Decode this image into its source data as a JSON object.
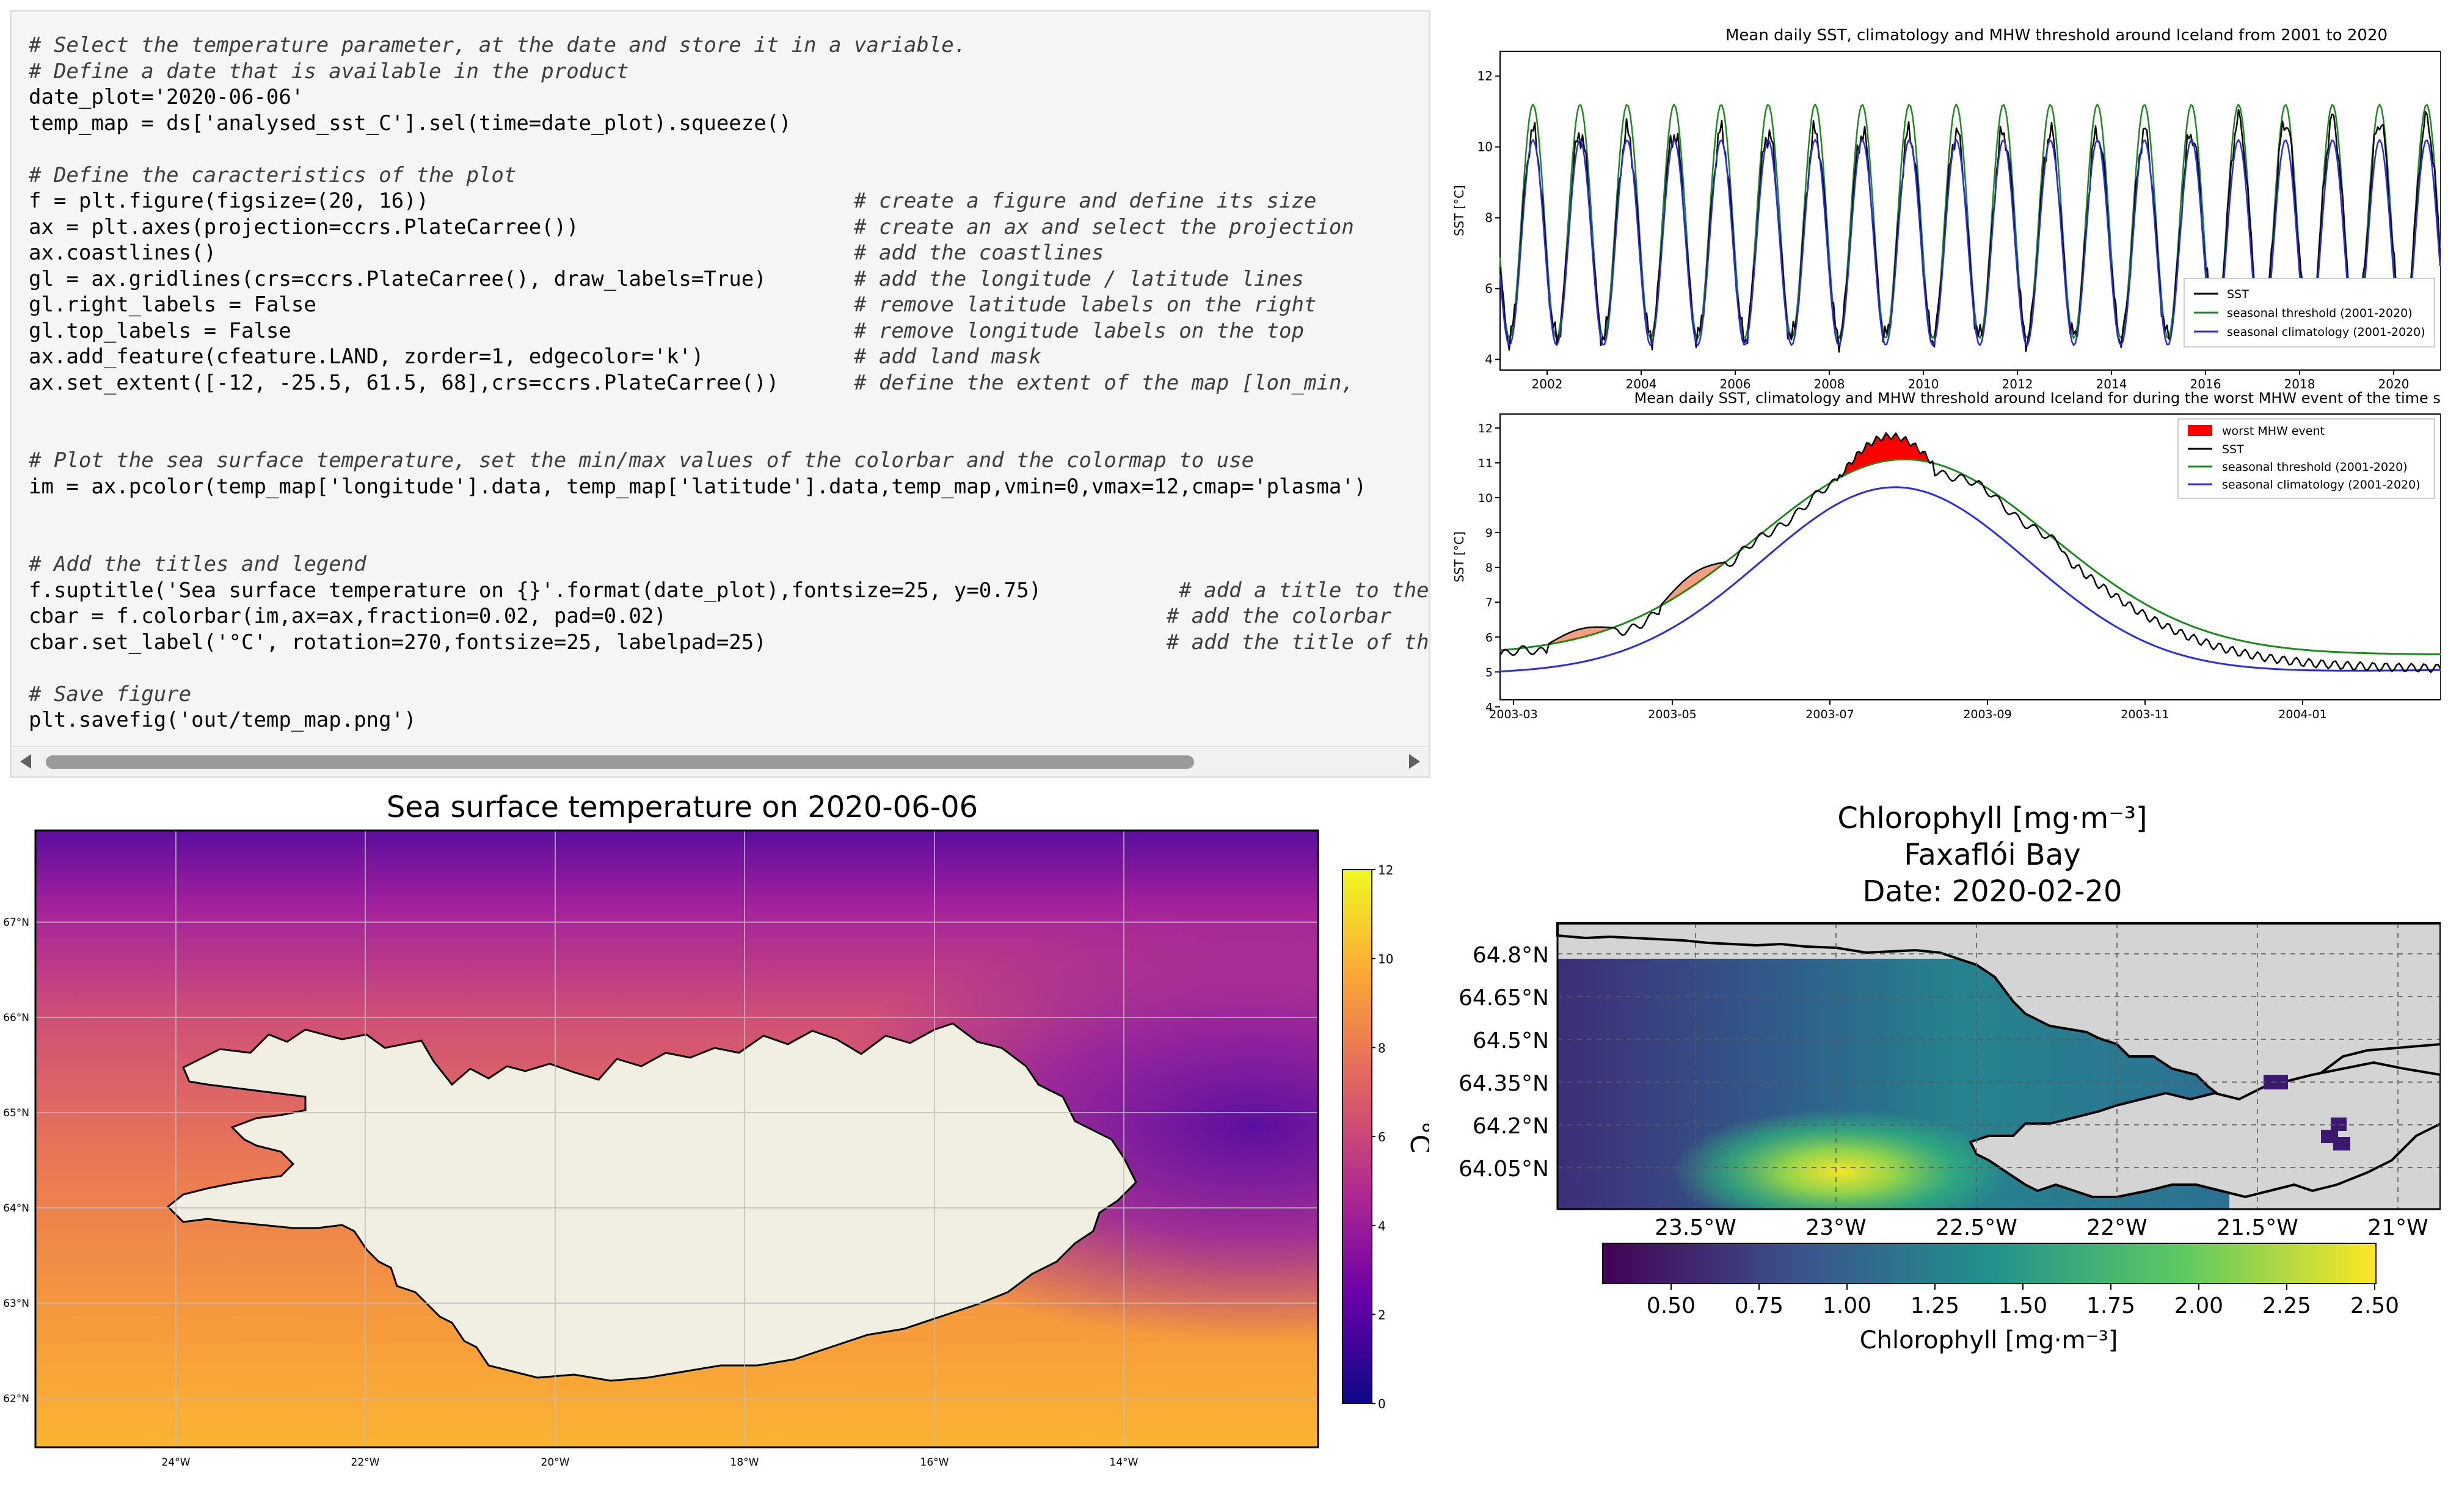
{
  "code_cell": {
    "lines": [
      {
        "code": "",
        "comment": "# Select the temperature parameter, at the date and store it in a variable."
      },
      {
        "code": "",
        "comment": "# Define a date that is available in the product"
      },
      {
        "code": "date_plot='2020-06-06'",
        "comment": ""
      },
      {
        "code": "temp_map = ds['analysed_sst_C'].sel(time=date_plot).squeeze()",
        "comment": ""
      },
      {
        "code": "",
        "comment": ""
      },
      {
        "code": "",
        "comment": "# Define the caracteristics of the plot"
      },
      {
        "code": "f = plt.figure(figsize=(20, 16))                                  ",
        "comment": "# create a figure and define its size"
      },
      {
        "code": "ax = plt.axes(projection=ccrs.PlateCarree())                      ",
        "comment": "# create an ax and select the projection"
      },
      {
        "code": "ax.coastlines()                                                   ",
        "comment": "# add the coastlines"
      },
      {
        "code": "gl = ax.gridlines(crs=ccrs.PlateCarree(), draw_labels=True)       ",
        "comment": "# add the longitude / latitude lines"
      },
      {
        "code": "gl.right_labels = False                                           ",
        "comment": "# remove latitude labels on the right"
      },
      {
        "code": "gl.top_labels = False                                             ",
        "comment": "# remove longitude labels on the top"
      },
      {
        "code": "ax.add_feature(cfeature.LAND, zorder=1, edgecolor='k')            ",
        "comment": "# add land mask"
      },
      {
        "code": "ax.set_extent([-12, -25.5, 61.5, 68],crs=ccrs.PlateCarree())      ",
        "comment": "# define the extent of the map [lon_min,"
      },
      {
        "code": "",
        "comment": ""
      },
      {
        "code": "",
        "comment": ""
      },
      {
        "code": "",
        "comment": "# Plot the sea surface temperature, set the min/max values of the colorbar and the colormap to use"
      },
      {
        "code": "im = ax.pcolor(temp_map['longitude'].data, temp_map['latitude'].data,temp_map,vmin=0,vmax=12,cmap='plasma')",
        "comment": ""
      },
      {
        "code": "",
        "comment": ""
      },
      {
        "code": "",
        "comment": ""
      },
      {
        "code": "",
        "comment": "# Add the titles and legend"
      },
      {
        "code": "f.suptitle('Sea surface temperature on {}'.format(date_plot),fontsize=25, y=0.75)           ",
        "comment": "# add a title to the figure"
      },
      {
        "code": "cbar = f.colorbar(im,ax=ax,fraction=0.02, pad=0.02)                                        ",
        "comment": "# add the colorbar"
      },
      {
        "code": "cbar.set_label('°C', rotation=270,fontsize=25, labelpad=25)                                ",
        "comment": "# add the title of the colorl"
      },
      {
        "code": "",
        "comment": ""
      },
      {
        "code": "",
        "comment": "# Save figure"
      },
      {
        "code": "plt.savefig('out/temp_map.png')",
        "comment": ""
      }
    ]
  },
  "mhw_timeseries": {
    "title": "Mean daily SST, climatology and MHW threshold around Iceland from 2001 to 2020",
    "ylabel": "SST [°C]",
    "yticks": [
      "4",
      "6",
      "8",
      "10",
      "12"
    ],
    "xticks": [
      "2002",
      "2004",
      "2006",
      "2008",
      "2010",
      "2012",
      "2014",
      "2016",
      "2018",
      "2020"
    ],
    "legend": [
      "SST",
      "seasonal threshold (2001-2020)",
      "seasonal climatology (2001-2020)"
    ]
  },
  "mhw_event": {
    "title": "Mean daily SST, climatology and MHW threshold around Iceland for during the worst MHW event of the time series",
    "ylabel": "SST [°C]",
    "yticks": [
      "4",
      "5",
      "6",
      "7",
      "8",
      "9",
      "10",
      "11",
      "12"
    ],
    "xticks": [
      "2003-03",
      "2003-05",
      "2003-07",
      "2003-09",
      "2003-11",
      "2004-01"
    ],
    "legend": [
      "worst MHW event",
      "SST",
      "seasonal threshold (2001-2020)",
      "seasonal climatology (2001-2020)"
    ]
  },
  "sst_map": {
    "title": "Sea surface temperature on 2020-06-06",
    "lat_labels": [
      "67°N",
      "66°N",
      "65°N",
      "64°N",
      "63°N",
      "62°N"
    ],
    "lon_labels": [
      "24°W",
      "22°W",
      "20°W",
      "18°W",
      "16°W",
      "14°W"
    ],
    "colorbar_ticks": [
      "12",
      "10",
      "8",
      "6",
      "4",
      "2",
      "0"
    ],
    "colorbar_label": "°C"
  },
  "chl_map": {
    "title_line1": "Chlorophyll [mg·m⁻³]",
    "title_line2": "Faxaflói Bay",
    "title_line3": "Date: 2020-02-20",
    "lat_labels": [
      "64.8°N",
      "64.65°N",
      "64.5°N",
      "64.35°N",
      "64.2°N",
      "64.05°N"
    ],
    "lon_labels": [
      "23.5°W",
      "23°W",
      "22.5°W",
      "22°W",
      "21.5°W",
      "21°W"
    ],
    "colorbar_ticks": [
      "0.50",
      "0.75",
      "1.00",
      "1.25",
      "1.50",
      "1.75",
      "2.00",
      "2.25",
      "2.50"
    ],
    "colorbar_label": "Chlorophyll [mg·m⁻³]"
  },
  "colors": {
    "sst": "#000000",
    "threshold": "#1a8a1a",
    "climatology": "#2c2ce0",
    "mhw_event": "#ff0000",
    "mhw_minor": "#f4a080",
    "land": "#f0efe1",
    "chl_land": "#d4d4d4"
  }
}
